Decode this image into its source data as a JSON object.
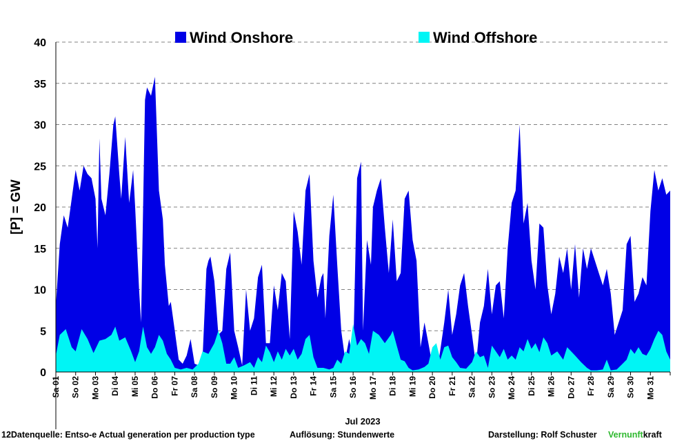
{
  "chart_data": {
    "type": "area",
    "stacked": true,
    "ylabel": "[P]  = GW",
    "ylim": [
      0,
      40
    ],
    "yticks": [
      0,
      5,
      10,
      15,
      20,
      25,
      30,
      35,
      40
    ],
    "grid": "horizontal-dashed",
    "legend_position": "top",
    "month_label": "Jul 2023",
    "categories": [
      "Sa 01",
      "So 02",
      "Mo 03",
      "Di 04",
      "Mi 05",
      "Do 06",
      "Fr 07",
      "Sa 08",
      "So 09",
      "Mo 10",
      "Di 11",
      "Mi 12",
      "Do 13",
      "Fr 14",
      "Sa 15",
      "So 16",
      "Mo 17",
      "Di 18",
      "Mi 19",
      "Do 20",
      "Fr 21",
      "Sa 22",
      "So 23",
      "Mo 24",
      "Di 25",
      "Mi 26",
      "Do 27",
      "Fr 28",
      "Sa 29",
      "So 30",
      "Mo 31"
    ],
    "x_unit": "day of month (1 = Jul 01 00:00, 32 = Aug 01 00:00)",
    "xlim": [
      1,
      32
    ],
    "series": [
      {
        "name": "Wind Offshore",
        "color": "#00f5f5",
        "points": [
          [
            1.0,
            2.0
          ],
          [
            1.2,
            4.5
          ],
          [
            1.5,
            5.2
          ],
          [
            1.8,
            3.0
          ],
          [
            2.0,
            2.5
          ],
          [
            2.3,
            5.2
          ],
          [
            2.6,
            4.0
          ],
          [
            2.9,
            2.3
          ],
          [
            3.2,
            3.8
          ],
          [
            3.5,
            4.0
          ],
          [
            3.8,
            4.5
          ],
          [
            4.0,
            5.5
          ],
          [
            4.2,
            3.8
          ],
          [
            4.5,
            4.2
          ],
          [
            4.8,
            2.5
          ],
          [
            5.0,
            1.2
          ],
          [
            5.2,
            2.5
          ],
          [
            5.4,
            5.5
          ],
          [
            5.6,
            3.0
          ],
          [
            5.8,
            2.2
          ],
          [
            6.0,
            3.0
          ],
          [
            6.2,
            4.5
          ],
          [
            6.4,
            3.8
          ],
          [
            6.6,
            2.2
          ],
          [
            6.8,
            1.5
          ],
          [
            7.0,
            0.5
          ],
          [
            7.3,
            0.3
          ],
          [
            7.6,
            0.5
          ],
          [
            7.9,
            0.3
          ],
          [
            8.2,
            1.0
          ],
          [
            8.4,
            2.5
          ],
          [
            8.7,
            2.2
          ],
          [
            9.0,
            3.5
          ],
          [
            9.2,
            5.0
          ],
          [
            9.4,
            3.5
          ],
          [
            9.6,
            1.0
          ],
          [
            9.8,
            1.0
          ],
          [
            10.0,
            1.8
          ],
          [
            10.2,
            0.5
          ],
          [
            10.5,
            0.8
          ],
          [
            10.8,
            1.2
          ],
          [
            11.0,
            0.5
          ],
          [
            11.2,
            1.8
          ],
          [
            11.4,
            1.2
          ],
          [
            11.6,
            3.2
          ],
          [
            11.8,
            2.4
          ],
          [
            12.0,
            1.2
          ],
          [
            12.2,
            2.5
          ],
          [
            12.4,
            1.5
          ],
          [
            12.6,
            2.8
          ],
          [
            12.8,
            2.0
          ],
          [
            13.0,
            2.8
          ],
          [
            13.2,
            1.5
          ],
          [
            13.4,
            2.2
          ],
          [
            13.6,
            4.0
          ],
          [
            13.8,
            4.5
          ],
          [
            14.0,
            1.8
          ],
          [
            14.2,
            0.5
          ],
          [
            14.5,
            0.5
          ],
          [
            14.8,
            0.3
          ],
          [
            15.0,
            0.5
          ],
          [
            15.2,
            1.5
          ],
          [
            15.4,
            1.0
          ],
          [
            15.6,
            2.5
          ],
          [
            15.8,
            2.2
          ],
          [
            16.0,
            5.8
          ],
          [
            16.2,
            3.2
          ],
          [
            16.4,
            4.0
          ],
          [
            16.6,
            3.5
          ],
          [
            16.8,
            2.2
          ],
          [
            17.0,
            5.0
          ],
          [
            17.3,
            4.5
          ],
          [
            17.6,
            3.5
          ],
          [
            17.9,
            4.5
          ],
          [
            18.0,
            5.0
          ],
          [
            18.2,
            3.2
          ],
          [
            18.4,
            1.5
          ],
          [
            18.6,
            1.3
          ],
          [
            18.8,
            0.5
          ],
          [
            19.0,
            0.2
          ],
          [
            19.3,
            0.3
          ],
          [
            19.6,
            0.6
          ],
          [
            19.8,
            1.0
          ],
          [
            20.0,
            3.0
          ],
          [
            20.2,
            3.5
          ],
          [
            20.4,
            1.5
          ],
          [
            20.6,
            3.0
          ],
          [
            20.8,
            3.2
          ],
          [
            21.0,
            1.8
          ],
          [
            21.2,
            1.2
          ],
          [
            21.4,
            0.5
          ],
          [
            21.7,
            0.4
          ],
          [
            22.0,
            1.2
          ],
          [
            22.2,
            2.5
          ],
          [
            22.4,
            1.8
          ],
          [
            22.6,
            2.0
          ],
          [
            22.8,
            0.5
          ],
          [
            23.0,
            3.2
          ],
          [
            23.2,
            2.5
          ],
          [
            23.4,
            1.8
          ],
          [
            23.6,
            2.8
          ],
          [
            23.8,
            1.5
          ],
          [
            24.0,
            2.0
          ],
          [
            24.2,
            1.5
          ],
          [
            24.4,
            3.0
          ],
          [
            24.6,
            2.5
          ],
          [
            24.8,
            4.0
          ],
          [
            25.0,
            2.8
          ],
          [
            25.2,
            3.5
          ],
          [
            25.4,
            2.4
          ],
          [
            25.6,
            4.2
          ],
          [
            25.8,
            3.5
          ],
          [
            26.0,
            2.0
          ],
          [
            26.3,
            2.5
          ],
          [
            26.6,
            1.5
          ],
          [
            26.8,
            3.0
          ],
          [
            27.0,
            2.5
          ],
          [
            27.2,
            2.0
          ],
          [
            27.5,
            1.2
          ],
          [
            27.8,
            0.5
          ],
          [
            28.0,
            0.2
          ],
          [
            28.3,
            0.2
          ],
          [
            28.6,
            0.3
          ],
          [
            28.8,
            1.5
          ],
          [
            29.0,
            0.2
          ],
          [
            29.3,
            0.3
          ],
          [
            29.6,
            1.0
          ],
          [
            29.8,
            1.5
          ],
          [
            30.0,
            2.8
          ],
          [
            30.2,
            2.2
          ],
          [
            30.4,
            3.0
          ],
          [
            30.6,
            2.2
          ],
          [
            30.8,
            2.0
          ],
          [
            31.0,
            2.8
          ],
          [
            31.2,
            4.0
          ],
          [
            31.4,
            5.0
          ],
          [
            31.6,
            4.5
          ],
          [
            31.8,
            2.5
          ],
          [
            32.0,
            1.5
          ]
        ]
      },
      {
        "name": "Wind Onshore",
        "color": "#0000e6",
        "points": [
          [
            1.0,
            8.0
          ],
          [
            1.2,
            15.5
          ],
          [
            1.4,
            19.0
          ],
          [
            1.6,
            17.5
          ],
          [
            1.8,
            21.0
          ],
          [
            2.0,
            24.5
          ],
          [
            2.2,
            22.0
          ],
          [
            2.4,
            25.0
          ],
          [
            2.6,
            24.0
          ],
          [
            2.8,
            23.5
          ],
          [
            3.0,
            21.0
          ],
          [
            3.1,
            15.0
          ],
          [
            3.2,
            28.3
          ],
          [
            3.3,
            21.0
          ],
          [
            3.5,
            19.0
          ],
          [
            3.7,
            24.0
          ],
          [
            3.9,
            30.0
          ],
          [
            4.0,
            31.0
          ],
          [
            4.2,
            24.0
          ],
          [
            4.3,
            21.0
          ],
          [
            4.5,
            28.5
          ],
          [
            4.7,
            20.5
          ],
          [
            4.9,
            24.5
          ],
          [
            5.0,
            20.0
          ],
          [
            5.2,
            10.0
          ],
          [
            5.3,
            6.0
          ],
          [
            5.5,
            33.0
          ],
          [
            5.6,
            34.5
          ],
          [
            5.8,
            33.5
          ],
          [
            6.0,
            35.8
          ],
          [
            6.2,
            22.0
          ],
          [
            6.4,
            18.5
          ],
          [
            6.5,
            13.0
          ],
          [
            6.7,
            8.0
          ],
          [
            6.8,
            8.5
          ],
          [
            7.0,
            5.0
          ],
          [
            7.2,
            1.5
          ],
          [
            7.4,
            1.0
          ],
          [
            7.6,
            2.0
          ],
          [
            7.8,
            4.0
          ],
          [
            8.0,
            1.0
          ],
          [
            8.2,
            0.8
          ],
          [
            8.4,
            1.5
          ],
          [
            8.6,
            12.5
          ],
          [
            8.7,
            13.5
          ],
          [
            8.8,
            14.0
          ],
          [
            9.0,
            11.0
          ],
          [
            9.2,
            4.5
          ],
          [
            9.4,
            5.0
          ],
          [
            9.6,
            12.5
          ],
          [
            9.8,
            14.5
          ],
          [
            10.0,
            5.0
          ],
          [
            10.2,
            3.0
          ],
          [
            10.4,
            0.8
          ],
          [
            10.6,
            10.0
          ],
          [
            10.8,
            5.0
          ],
          [
            11.0,
            6.5
          ],
          [
            11.2,
            11.5
          ],
          [
            11.4,
            13.0
          ],
          [
            11.6,
            3.5
          ],
          [
            11.8,
            3.5
          ],
          [
            12.0,
            10.5
          ],
          [
            12.2,
            7.5
          ],
          [
            12.4,
            12.0
          ],
          [
            12.6,
            11.0
          ],
          [
            12.8,
            4.0
          ],
          [
            13.0,
            19.5
          ],
          [
            13.2,
            17.0
          ],
          [
            13.4,
            13.0
          ],
          [
            13.6,
            22.0
          ],
          [
            13.8,
            24.0
          ],
          [
            14.0,
            13.5
          ],
          [
            14.2,
            9.0
          ],
          [
            14.4,
            11.5
          ],
          [
            14.5,
            12.0
          ],
          [
            14.6,
            6.5
          ],
          [
            14.8,
            16.5
          ],
          [
            15.0,
            21.5
          ],
          [
            15.2,
            13.0
          ],
          [
            15.4,
            5.0
          ],
          [
            15.6,
            1.5
          ],
          [
            15.8,
            4.0
          ],
          [
            16.0,
            1.5
          ],
          [
            16.2,
            23.5
          ],
          [
            16.4,
            25.5
          ],
          [
            16.5,
            5.0
          ],
          [
            16.7,
            16.0
          ],
          [
            16.9,
            13.0
          ],
          [
            17.0,
            20.0
          ],
          [
            17.2,
            22.0
          ],
          [
            17.4,
            23.5
          ],
          [
            17.6,
            17.5
          ],
          [
            17.8,
            12.0
          ],
          [
            18.0,
            18.5
          ],
          [
            18.2,
            11.0
          ],
          [
            18.4,
            12.0
          ],
          [
            18.6,
            21.0
          ],
          [
            18.8,
            22.0
          ],
          [
            19.0,
            16.0
          ],
          [
            19.2,
            13.5
          ],
          [
            19.4,
            3.0
          ],
          [
            19.6,
            6.0
          ],
          [
            19.8,
            3.5
          ],
          [
            20.0,
            0.8
          ],
          [
            20.3,
            1.0
          ],
          [
            20.6,
            6.0
          ],
          [
            20.8,
            10.0
          ],
          [
            21.0,
            4.5
          ],
          [
            21.2,
            7.0
          ],
          [
            21.4,
            10.5
          ],
          [
            21.6,
            12.0
          ],
          [
            21.8,
            8.0
          ],
          [
            22.0,
            4.5
          ],
          [
            22.2,
            0.8
          ],
          [
            22.4,
            6.0
          ],
          [
            22.6,
            8.0
          ],
          [
            22.8,
            12.5
          ],
          [
            23.0,
            7.0
          ],
          [
            23.2,
            10.5
          ],
          [
            23.4,
            11.0
          ],
          [
            23.6,
            6.5
          ],
          [
            23.8,
            15.0
          ],
          [
            24.0,
            20.5
          ],
          [
            24.2,
            22.0
          ],
          [
            24.4,
            30.0
          ],
          [
            24.6,
            18.0
          ],
          [
            24.8,
            20.5
          ],
          [
            25.0,
            13.5
          ],
          [
            25.2,
            10.0
          ],
          [
            25.4,
            18.0
          ],
          [
            25.6,
            17.5
          ],
          [
            25.8,
            10.5
          ],
          [
            26.0,
            7.0
          ],
          [
            26.2,
            9.5
          ],
          [
            26.4,
            14.0
          ],
          [
            26.6,
            12.0
          ],
          [
            26.8,
            15.0
          ],
          [
            27.0,
            10.0
          ],
          [
            27.2,
            15.5
          ],
          [
            27.4,
            9.0
          ],
          [
            27.6,
            15.0
          ],
          [
            27.8,
            12.5
          ],
          [
            28.0,
            15.0
          ],
          [
            28.2,
            13.5
          ],
          [
            28.4,
            12.0
          ],
          [
            28.6,
            10.5
          ],
          [
            28.8,
            12.5
          ],
          [
            29.0,
            9.5
          ],
          [
            29.2,
            4.5
          ],
          [
            29.4,
            6.0
          ],
          [
            29.6,
            7.5
          ],
          [
            29.8,
            15.5
          ],
          [
            30.0,
            16.5
          ],
          [
            30.2,
            8.5
          ],
          [
            30.4,
            9.5
          ],
          [
            30.6,
            11.5
          ],
          [
            30.8,
            10.5
          ],
          [
            31.0,
            19.5
          ],
          [
            31.2,
            24.5
          ],
          [
            31.4,
            22.0
          ],
          [
            31.6,
            23.5
          ],
          [
            31.8,
            21.5
          ],
          [
            32.0,
            22.0
          ]
        ]
      }
    ]
  },
  "footer": {
    "source": "12Datenquelle: Entso-e  Actual generation per production type",
    "resolution": "Auflösung: Stundenwerte",
    "author": "Darstellung:  Rolf Schuster",
    "brand_green": "Vernunft",
    "brand_rest": "kraft"
  },
  "colors": {
    "onshore": "#0000e6",
    "offshore": "#00f5f5",
    "brand_green": "#2eb82e",
    "grid": "#808080"
  }
}
